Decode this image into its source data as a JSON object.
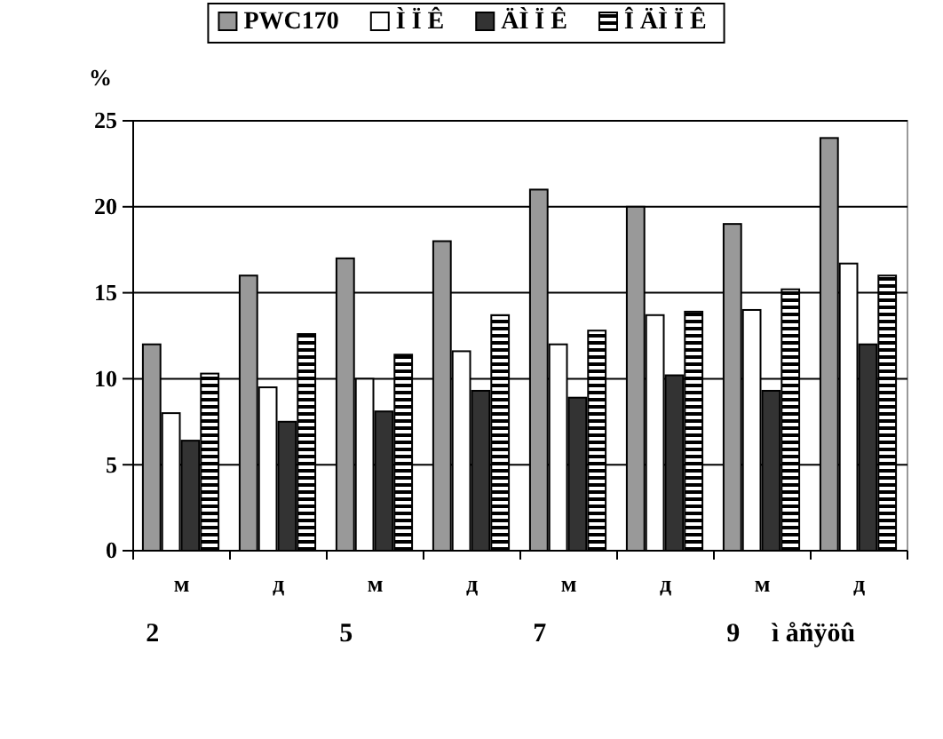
{
  "chart_data": {
    "type": "bar",
    "ylabel": "%",
    "categories": [
      "м",
      "д",
      "м",
      "д",
      "м",
      "д",
      "м",
      "д"
    ],
    "series": [
      {
        "name": "PWC170",
        "color": "#999999",
        "values": [
          12,
          16,
          17,
          18,
          21,
          20,
          19,
          24
        ]
      },
      {
        "name": "Ì Ï Ê",
        "color": "#ffffff",
        "values": [
          8,
          9.5,
          10,
          11.6,
          12,
          13.7,
          14,
          16.7
        ]
      },
      {
        "name": "ÄÌ Ï Ê",
        "color": "#333333",
        "values": [
          6.4,
          7.5,
          8.1,
          9.3,
          8.9,
          10.2,
          9.3,
          12
        ]
      },
      {
        "name": "Î ÄÌ Ï Ê",
        "color": "#000000",
        "values": [
          10.3,
          12.6,
          11.4,
          13.7,
          12.8,
          13.9,
          15.2,
          16
        ]
      }
    ],
    "ylim": [
      0,
      25
    ],
    "yticks": [
      0,
      5,
      10,
      15,
      20,
      25
    ],
    "grid": "y",
    "legend": "top",
    "annotations": [
      "2",
      "5",
      "7",
      "9",
      "ì åñÿöû"
    ]
  }
}
